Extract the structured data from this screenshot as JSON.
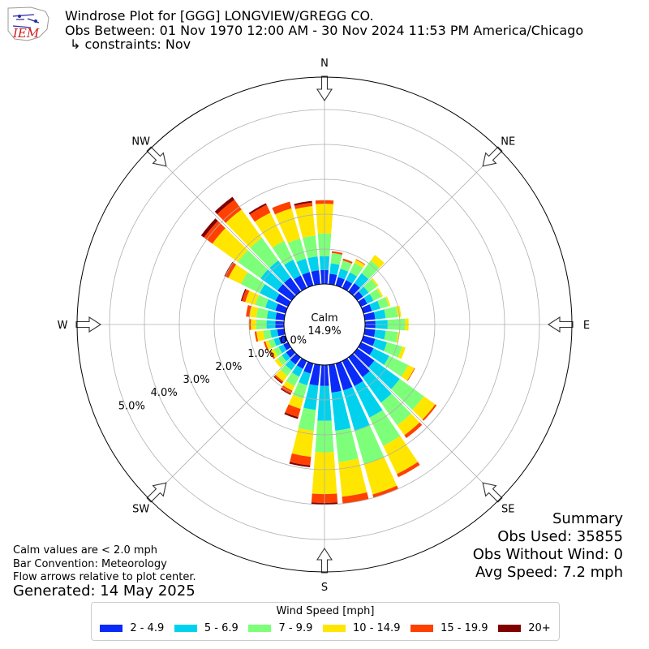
{
  "header": {
    "title_line1": "Windrose Plot for [GGG] LONGVIEW/GREGG CO.",
    "title_line2": "Obs Between: 01 Nov 1970 12:00 AM - 30 Nov 2024 11:53 PM America/Chicago",
    "title_line3": "↳ constraints: Nov",
    "logo_text": "IEM"
  },
  "notes": {
    "line1": "Calm values are < 2.0 mph",
    "line2": "Bar Convention: Meteorology",
    "line3": "Flow arrows relative to plot center.",
    "generated": "Generated: 14 May 2025"
  },
  "summary": {
    "title": "Summary",
    "obs_used": "Obs Used: 35855",
    "obs_without_wind": "Obs Without Wind: 0",
    "avg_speed": "Avg Speed: 7.2 mph"
  },
  "legend": {
    "title": "Wind Speed [mph]",
    "items": [
      {
        "label": "2 - 4.9",
        "color": "#0a2af8"
      },
      {
        "label": "5 - 6.9",
        "color": "#00d2ee"
      },
      {
        "label": "7 - 9.9",
        "color": "#7dff7a"
      },
      {
        "label": "10 - 14.9",
        "color": "#ffe600"
      },
      {
        "label": "15 - 19.9",
        "color": "#ff4000"
      },
      {
        "label": "20+",
        "color": "#800000"
      }
    ]
  },
  "chart_data": {
    "type": "windrose",
    "calm_label": "Calm",
    "calm_value": "14.9%",
    "radial_axis": {
      "ticks": [
        0,
        1,
        2,
        3,
        4,
        5
      ],
      "tick_labels": [
        "0.0%",
        "1.0%",
        "2.0%",
        "3.0%",
        "4.0%",
        "5.0%"
      ],
      "unit": "percent"
    },
    "compass_labels": [
      {
        "label": "N",
        "angle": 0
      },
      {
        "label": "NE",
        "angle": 45
      },
      {
        "label": "E",
        "angle": 90
      },
      {
        "label": "SE",
        "angle": 135
      },
      {
        "label": "S",
        "angle": 180
      },
      {
        "label": "SW",
        "angle": 225
      },
      {
        "label": "W",
        "angle": 270
      },
      {
        "label": "NW",
        "angle": 315
      }
    ],
    "speed_bins": [
      "2 - 4.9",
      "5 - 6.9",
      "7 - 9.9",
      "10 - 14.9",
      "15 - 19.9",
      "20+"
    ],
    "directions": [
      {
        "dir": 0,
        "values": [
          0.4,
          0.4,
          0.65,
          0.85,
          0.1,
          0.0
        ]
      },
      {
        "dir": 10,
        "values": [
          0.3,
          0.3,
          0.3,
          0.0,
          0.05,
          0.0
        ]
      },
      {
        "dir": 20,
        "values": [
          0.25,
          0.25,
          0.25,
          0.0,
          0.05,
          0.0
        ]
      },
      {
        "dir": 30,
        "values": [
          0.25,
          0.25,
          0.3,
          0.1,
          0.02,
          0.0
        ]
      },
      {
        "dir": 40,
        "values": [
          0.3,
          0.35,
          0.45,
          0.2,
          0.0,
          0.0
        ]
      },
      {
        "dir": 50,
        "values": [
          0.2,
          0.2,
          0.3,
          0.05,
          0.0,
          0.0
        ]
      },
      {
        "dir": 60,
        "values": [
          0.2,
          0.2,
          0.25,
          0.05,
          0.0,
          0.0
        ]
      },
      {
        "dir": 70,
        "values": [
          0.25,
          0.25,
          0.25,
          0.05,
          0.0,
          0.0
        ]
      },
      {
        "dir": 80,
        "values": [
          0.3,
          0.3,
          0.35,
          0.1,
          0.0,
          0.0
        ]
      },
      {
        "dir": 90,
        "values": [
          0.3,
          0.35,
          0.5,
          0.1,
          0.0,
          0.0
        ]
      },
      {
        "dir": 100,
        "values": [
          0.3,
          0.3,
          0.35,
          0.05,
          0.0,
          0.0
        ]
      },
      {
        "dir": 110,
        "values": [
          0.35,
          0.35,
          0.45,
          0.1,
          0.0,
          0.0
        ]
      },
      {
        "dir": 120,
        "values": [
          0.4,
          0.5,
          0.6,
          0.2,
          0.02,
          0.0
        ]
      },
      {
        "dir": 130,
        "values": [
          0.6,
          0.9,
          0.85,
          0.4,
          0.05,
          0.0
        ]
      },
      {
        "dir": 140,
        "values": [
          0.7,
          0.9,
          0.8,
          0.35,
          0.1,
          0.0
        ]
      },
      {
        "dir": 150,
        "values": [
          0.8,
          1.0,
          0.9,
          0.9,
          0.1,
          0.0
        ]
      },
      {
        "dir": 160,
        "values": [
          0.8,
          1.2,
          1.0,
          0.9,
          0.1,
          0.0
        ]
      },
      {
        "dir": 170,
        "values": [
          0.8,
          1.1,
          0.9,
          1.0,
          0.2,
          0.0
        ]
      },
      {
        "dir": 180,
        "values": [
          0.6,
          1.0,
          0.9,
          1.2,
          0.25,
          0.05
        ]
      },
      {
        "dir": 190,
        "values": [
          0.6,
          0.7,
          0.6,
          0.75,
          0.25,
          0.05
        ]
      },
      {
        "dir": 200,
        "values": [
          0.3,
          0.35,
          0.4,
          0.3,
          0.25,
          0.05
        ]
      },
      {
        "dir": 210,
        "values": [
          0.25,
          0.25,
          0.3,
          0.15,
          0.1,
          0.03
        ]
      },
      {
        "dir": 220,
        "values": [
          0.25,
          0.2,
          0.2,
          0.2,
          0.05,
          0.03
        ]
      },
      {
        "dir": 230,
        "values": [
          0.2,
          0.15,
          0.15,
          0.1,
          0.0,
          0.0
        ]
      },
      {
        "dir": 240,
        "values": [
          0.15,
          0.15,
          0.15,
          0.1,
          0.05,
          0.0
        ]
      },
      {
        "dir": 250,
        "values": [
          0.2,
          0.15,
          0.15,
          0.1,
          0.05,
          0.0
        ]
      },
      {
        "dir": 260,
        "values": [
          0.2,
          0.2,
          0.2,
          0.2,
          0.05,
          0.0
        ]
      },
      {
        "dir": 270,
        "values": [
          0.25,
          0.25,
          0.3,
          0.15,
          0.05,
          0.0
        ]
      },
      {
        "dir": 280,
        "values": [
          0.25,
          0.25,
          0.3,
          0.2,
          0.1,
          0.0
        ]
      },
      {
        "dir": 290,
        "values": [
          0.3,
          0.3,
          0.3,
          0.3,
          0.1,
          0.03
        ]
      },
      {
        "dir": 300,
        "values": [
          0.4,
          0.5,
          0.6,
          0.4,
          0.1,
          0.03
        ]
      },
      {
        "dir": 310,
        "values": [
          0.5,
          0.6,
          0.8,
          0.9,
          0.3,
          0.1
        ]
      },
      {
        "dir": 320,
        "values": [
          0.5,
          0.6,
          0.8,
          1.0,
          0.35,
          0.1
        ]
      },
      {
        "dir": 330,
        "values": [
          0.4,
          0.5,
          0.6,
          0.9,
          0.25,
          0.05
        ]
      },
      {
        "dir": 340,
        "values": [
          0.4,
          0.4,
          0.6,
          0.9,
          0.2,
          0.0
        ]
      },
      {
        "dir": 350,
        "values": [
          0.4,
          0.4,
          0.6,
          0.85,
          0.1,
          0.05
        ]
      }
    ]
  }
}
